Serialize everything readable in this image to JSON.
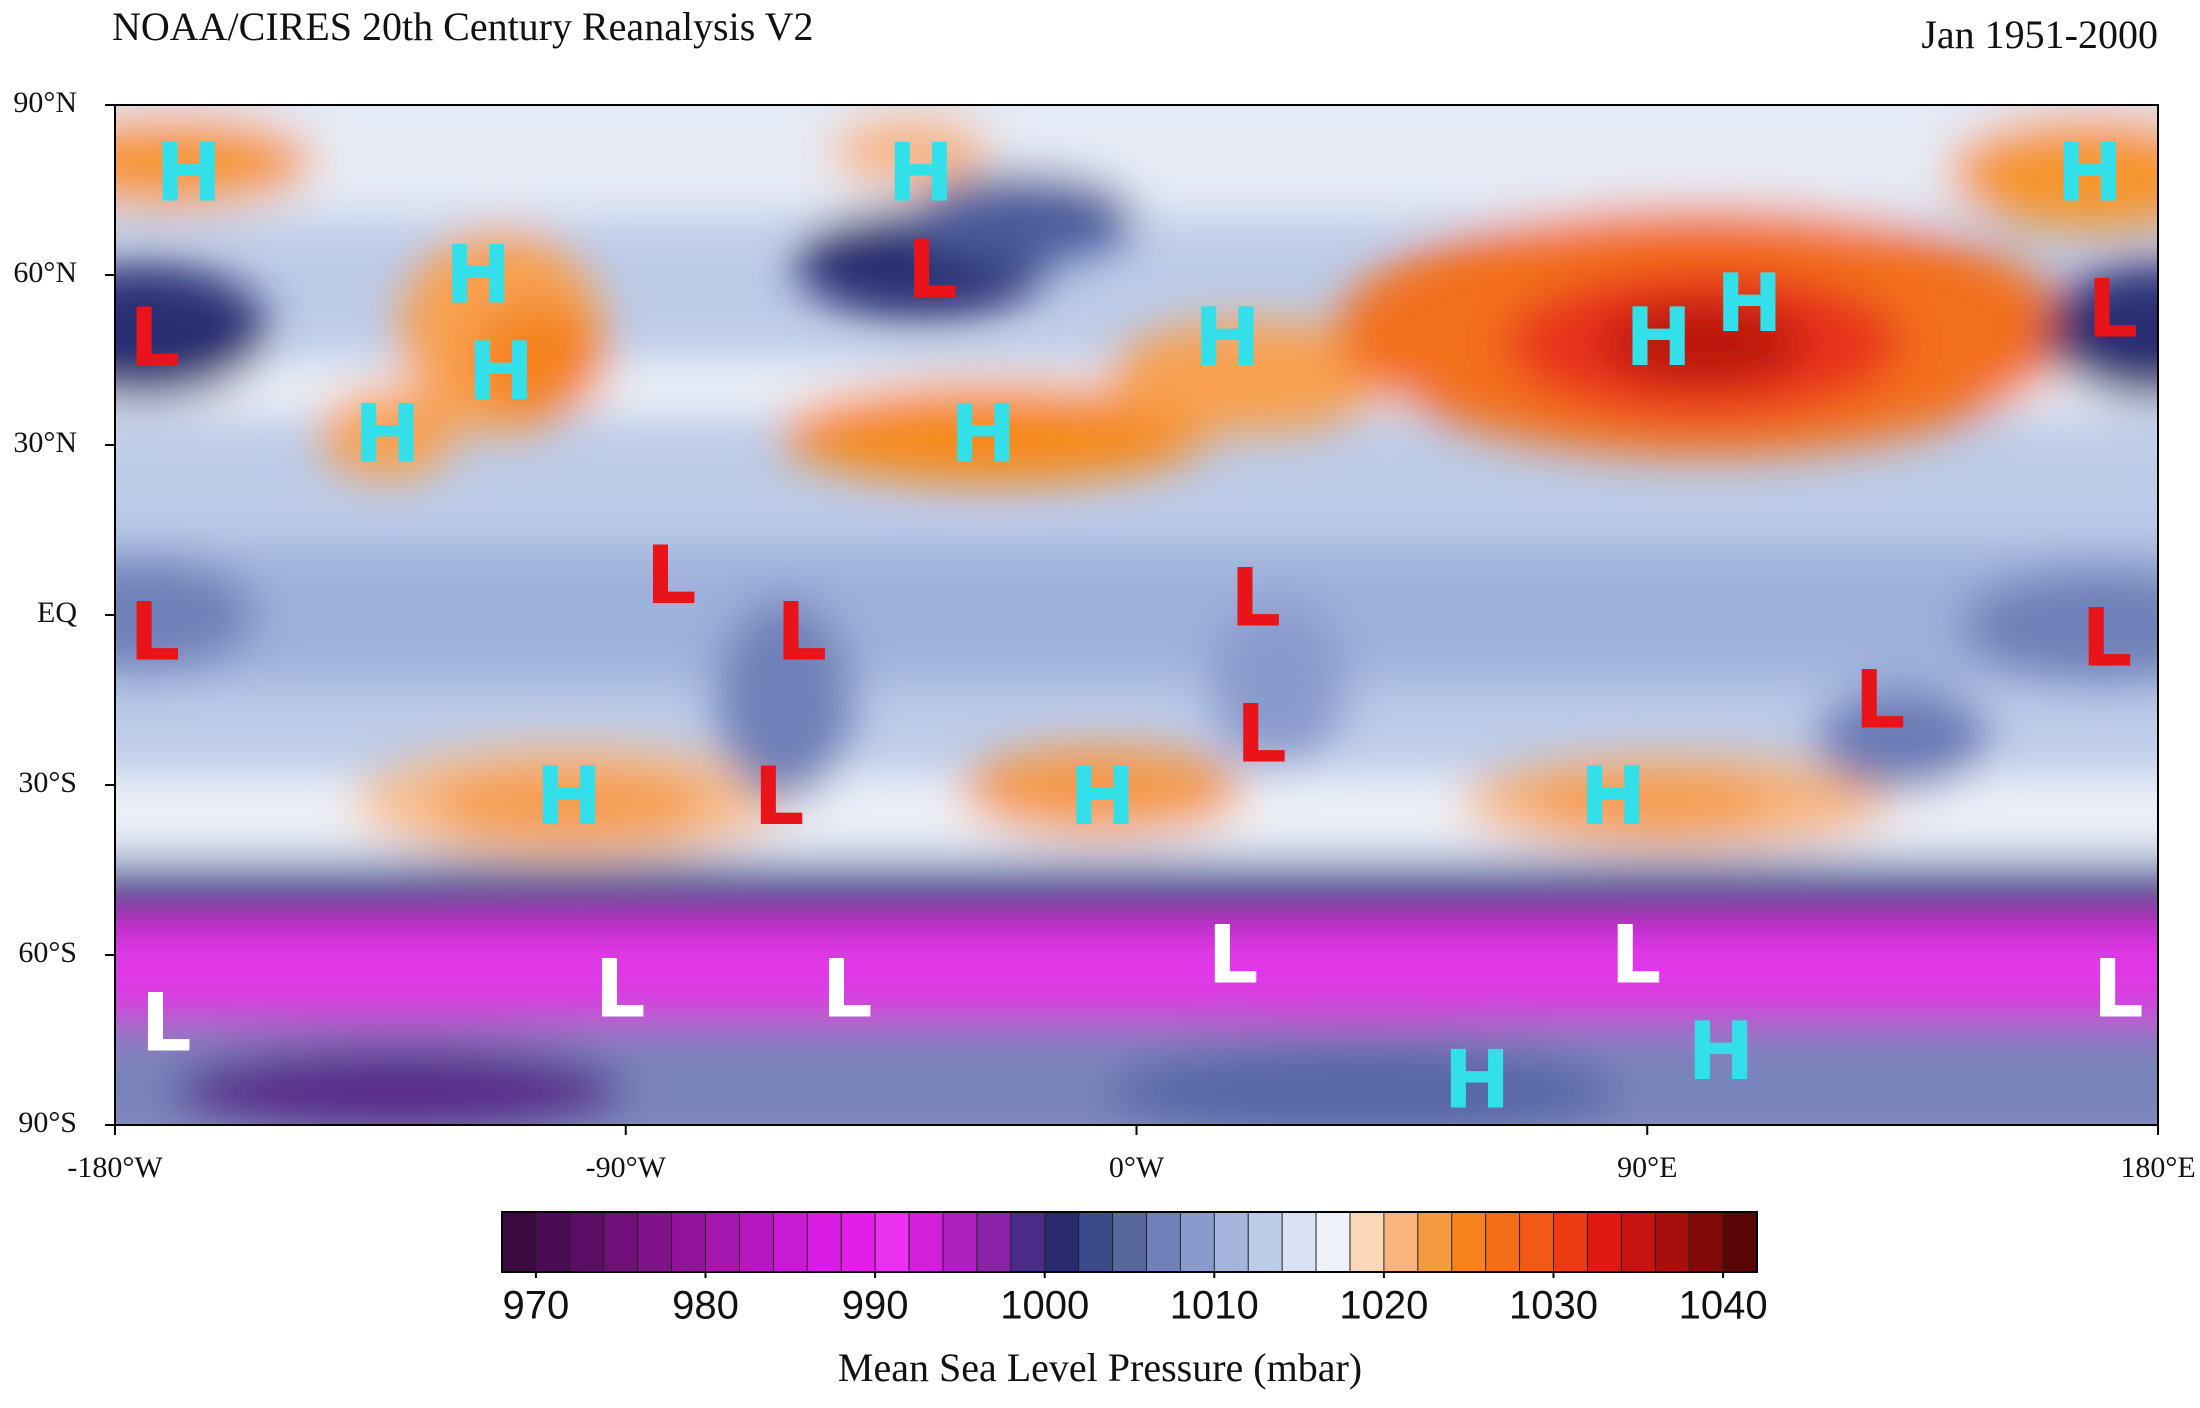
{
  "header": {
    "title": "NOAA/CIRES 20th Century Reanalysis V2",
    "period": "Jan 1951-2000"
  },
  "map": {
    "xlim": [
      -180,
      180
    ],
    "xticks": [
      {
        "value": -180,
        "label": "-180°W"
      },
      {
        "value": -90,
        "label": "-90°W"
      },
      {
        "value": 0,
        "label": "0°W"
      },
      {
        "value": 90,
        "label": "90°E"
      },
      {
        "value": 180,
        "label": "180°E"
      }
    ],
    "ylim": [
      -90,
      90
    ],
    "yticks": [
      {
        "value": 90,
        "label": "90°N"
      },
      {
        "value": 60,
        "label": "60°N"
      },
      {
        "value": 30,
        "label": "30°N"
      },
      {
        "value": 0,
        "label": "EQ"
      },
      {
        "value": -30,
        "label": "30°S"
      },
      {
        "value": -60,
        "label": "60°S"
      },
      {
        "value": -90,
        "label": "90°S"
      }
    ],
    "markers": [
      {
        "label": "H",
        "color": "#33e0ea"
      },
      {
        "label": "H",
        "color": "#33e0ea"
      },
      {
        "label": "H",
        "color": "#33e0ea"
      },
      {
        "label": "H",
        "color": "#33e0ea"
      },
      {
        "label": "H",
        "color": "#33e0ea"
      },
      {
        "label": "H",
        "color": "#33e0ea"
      },
      {
        "label": "H",
        "color": "#33e0ea"
      },
      {
        "label": "H",
        "color": "#33e0ea"
      },
      {
        "label": "H",
        "color": "#33e0ea"
      },
      {
        "label": "H",
        "color": "#33e0ea"
      },
      {
        "label": "H",
        "color": "#33e0ea"
      },
      {
        "label": "H",
        "color": "#33e0ea"
      },
      {
        "label": "H",
        "color": "#33e0ea"
      },
      {
        "label": "H",
        "color": "#33e0ea"
      },
      {
        "label": "H",
        "color": "#33e0ea"
      },
      {
        "label": "L",
        "color": "#e8141a"
      },
      {
        "label": "L",
        "color": "#e8141a"
      },
      {
        "label": "L",
        "color": "#e8141a"
      },
      {
        "label": "L",
        "color": "#e8141a"
      },
      {
        "label": "L",
        "color": "#e8141a"
      },
      {
        "label": "L",
        "color": "#e8141a"
      },
      {
        "label": "L",
        "color": "#e8141a"
      },
      {
        "label": "L",
        "color": "#e8141a"
      },
      {
        "label": "L",
        "color": "#e8141a"
      },
      {
        "label": "L",
        "color": "#e8141a"
      },
      {
        "label": "L",
        "color": "#e8141a"
      },
      {
        "label": "L",
        "color": "#ffffff"
      },
      {
        "label": "L",
        "color": "#ffffff"
      },
      {
        "label": "L",
        "color": "#ffffff"
      },
      {
        "label": "L",
        "color": "#ffffff"
      },
      {
        "label": "L",
        "color": "#ffffff"
      },
      {
        "label": "L",
        "color": "#ffffff"
      }
    ]
  },
  "colorbar": {
    "lim": [
      968,
      1042
    ],
    "ticks": [
      970,
      980,
      990,
      1000,
      1010,
      1020,
      1030,
      1040
    ],
    "colors": [
      "#3a0a40",
      "#4a0c52",
      "#5c0e66",
      "#6e1078",
      "#80128a",
      "#92149c",
      "#a416ae",
      "#b618c0",
      "#c81ad2",
      "#d81ce2",
      "#e21ee8",
      "#e830ee",
      "#d020d8",
      "#b020c0",
      "#8a22a8",
      "#4a2a8a",
      "#2a2a70",
      "#3a4a8a",
      "#56689e",
      "#7080b8",
      "#8a9acc",
      "#a4b4dc",
      "#bccce8",
      "#d8e2f2",
      "#f0f2fa",
      "#fad8b8",
      "#f8b47c",
      "#f69a40",
      "#f5821c",
      "#f26e18",
      "#f05a16",
      "#ec3a12",
      "#e01a12",
      "#c81410",
      "#a80e0c",
      "#800a08",
      "#5a0606"
    ],
    "label": "Mean Sea Level Pressure (mbar)"
  }
}
